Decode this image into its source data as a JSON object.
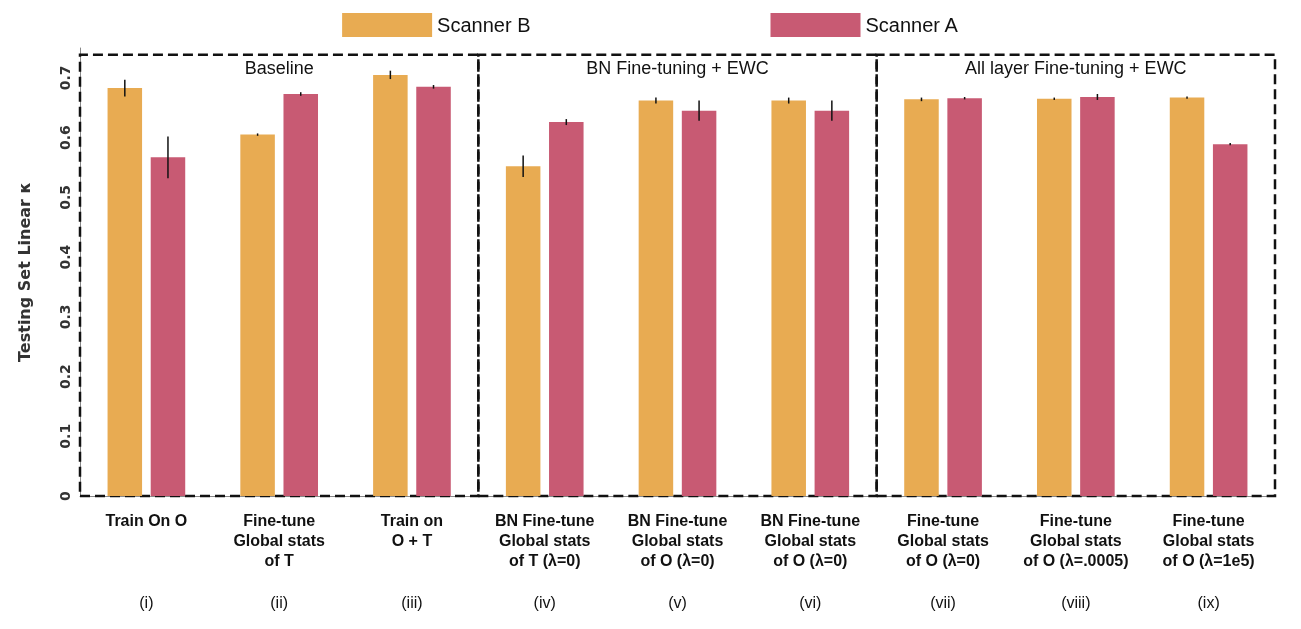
{
  "chart_data": {
    "type": "bar",
    "ylabel": "Testing Set Linear κ",
    "categories": [
      "Train On O\n(i)",
      "Fine-tune\nGlobal stats\nof T\n(ii)",
      "Train on\nO + T\n(iii)",
      "BN Fine-tune\nGlobal stats\nof T (λ=0)\n(iv)",
      "BN Fine-tune\nGlobal stats\nof O (λ=0)\n(v)",
      "BN Fine-tune\nGlobal stats\nof O (λ=0)\n(vi)",
      "Fine-tune\nGlobal stats\nof O (λ=0)\n(vii)",
      "Fine-tune\nGlobal stats\nof O (λ=.0005)\n(viii)",
      "Fine-tune\nGlobal stats\nof O (λ=1e5)\n(ix)"
    ],
    "series": [
      {
        "name": "Scanner B",
        "color": "#e8ab52",
        "values": [
          0.683,
          0.605,
          0.705,
          0.552,
          0.662,
          0.662,
          0.664,
          0.665,
          0.667
        ],
        "errors": [
          0.014,
          0.002,
          0.007,
          0.018,
          0.005,
          0.005,
          0.003,
          0.002,
          0.002
        ]
      },
      {
        "name": "Scanner A",
        "color": "#c85a73",
        "values": [
          0.567,
          0.673,
          0.685,
          0.626,
          0.645,
          0.645,
          0.666,
          0.668,
          0.589
        ],
        "errors": [
          0.035,
          0.003,
          0.003,
          0.005,
          0.017,
          0.017,
          0.002,
          0.005,
          0.002
        ]
      }
    ],
    "ylim": [
      0,
      0.75
    ],
    "yticks": [
      0,
      0.1,
      0.2,
      0.3,
      0.4,
      0.5,
      0.6,
      0.7
    ],
    "annotations": [
      "Baseline",
      "BN Fine-tuning + EWC",
      "All layer Fine-tuning + EWC"
    ],
    "grid": false,
    "legend": "top"
  }
}
